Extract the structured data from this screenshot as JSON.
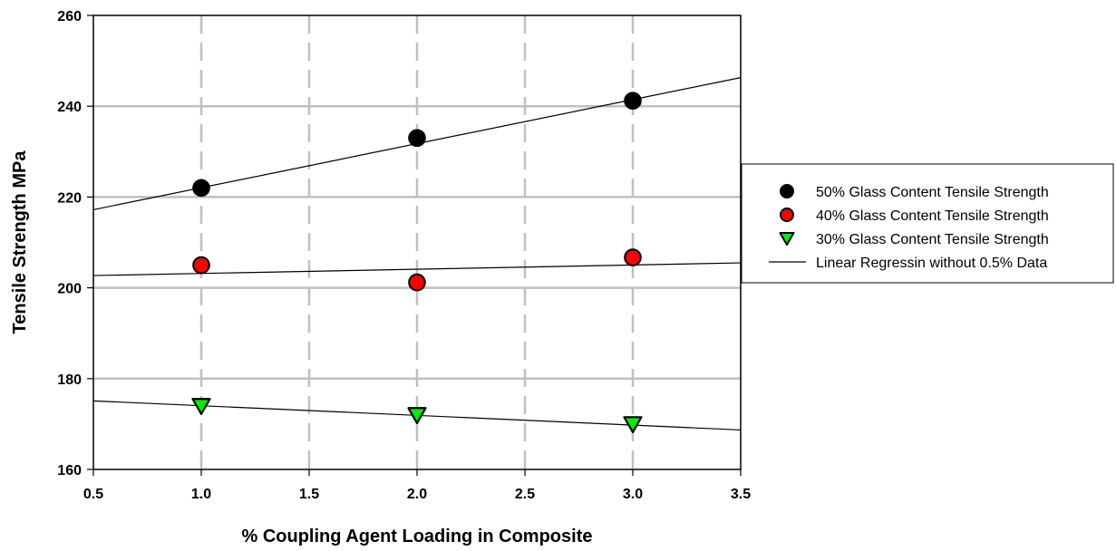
{
  "chart_data": {
    "type": "scatter",
    "xlabel": "% Coupling Agent Loading in Composite",
    "ylabel": "Tensile Strength MPa",
    "xlim": [
      0.5,
      3.5
    ],
    "ylim": [
      160,
      260
    ],
    "x_ticks": [
      "0.5",
      "1.0",
      "1.5",
      "2.0",
      "2.5",
      "3.0",
      "3.5"
    ],
    "y_ticks": [
      "160",
      "180",
      "200",
      "220",
      "240",
      "260"
    ],
    "grid": {
      "horizontal": "solid",
      "vertical": "dashed"
    },
    "legend_position": "right",
    "series": [
      {
        "name": "50% Glass Content Tensile Strength",
        "marker": "circle",
        "color": "#000000",
        "x": [
          1.0,
          2.0,
          3.0
        ],
        "y": [
          222,
          233,
          241.2
        ],
        "fit": {
          "x": [
            0.5,
            3.5
          ],
          "y": [
            217.2,
            246.3
          ]
        }
      },
      {
        "name": "40% Glass Content Tensile Strength",
        "marker": "circle",
        "color": "#ff0000",
        "x": [
          1.0,
          2.0,
          3.0
        ],
        "y": [
          205,
          201.2,
          206.7
        ],
        "fit": {
          "x": [
            0.5,
            3.5
          ],
          "y": [
            202.7,
            205.5
          ]
        }
      },
      {
        "name": "30% Glass Content Tensile Strength",
        "marker": "triangle-down",
        "color": "#00ee00",
        "x": [
          1.0,
          2.0,
          3.0
        ],
        "y": [
          174,
          172,
          170
        ],
        "fit": {
          "x": [
            0.5,
            3.5
          ],
          "y": [
            175.1,
            168.7
          ]
        }
      }
    ],
    "regression_label": "Linear Regressin without 0.5% Data"
  }
}
